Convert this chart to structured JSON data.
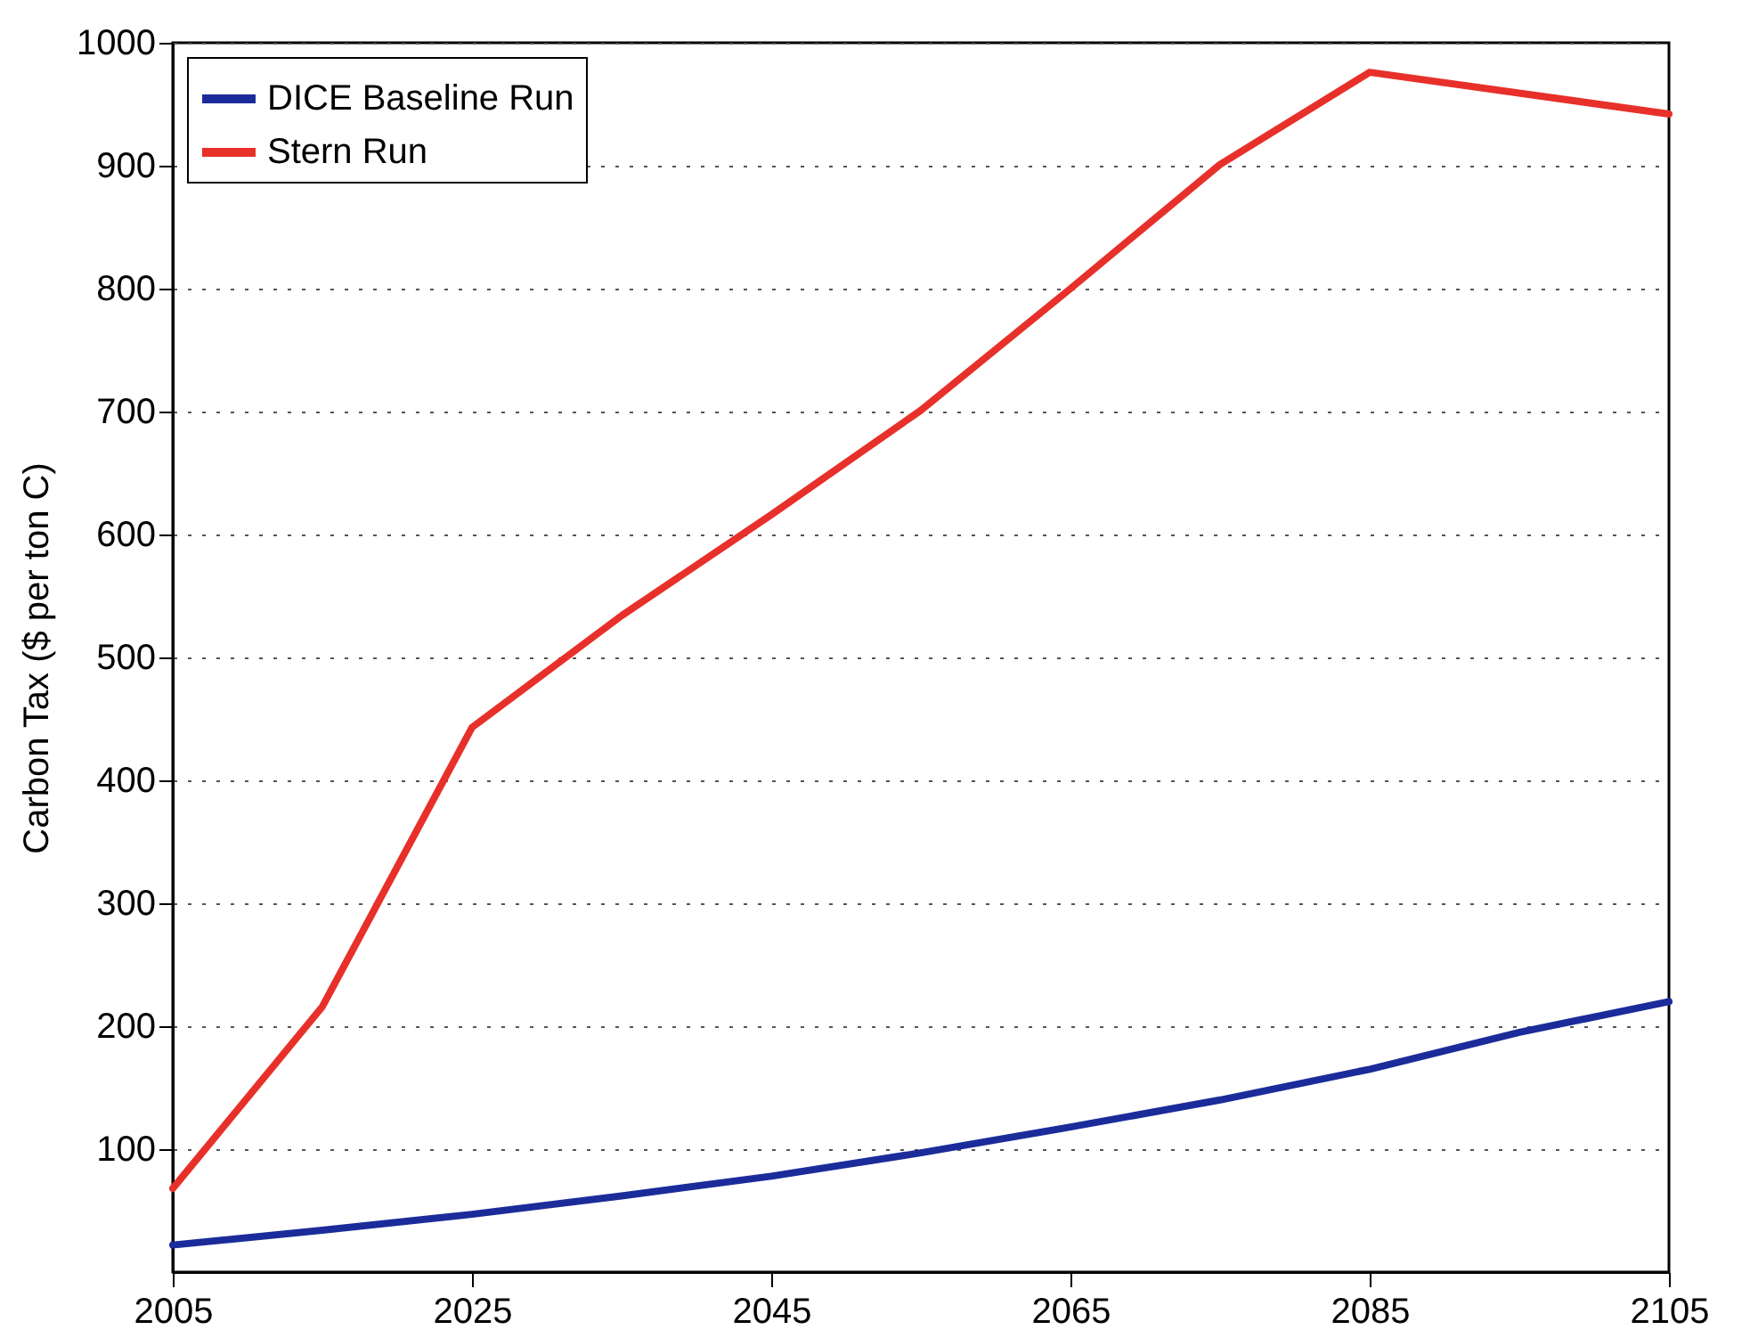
{
  "chart_data": {
    "type": "line",
    "ylabel": "Carbon Tax ($ per ton C)",
    "x": [
      2005,
      2015,
      2025,
      2035,
      2045,
      2055,
      2065,
      2075,
      2085,
      2095,
      2105
    ],
    "series": [
      {
        "name": "DICE Baseline Run",
        "color": "#1b2c9a",
        "values": [
          22,
          34,
          47,
          62,
          78,
          97,
          118,
          140,
          165,
          195,
          220
        ]
      },
      {
        "name": "Stern Run",
        "color": "#e8302a",
        "x": [
          2005,
          2015,
          2025,
          2035,
          2045,
          2055,
          2065,
          2075,
          2085,
          2105
        ],
        "values": [
          68,
          216,
          443,
          534,
          616,
          701,
          800,
          901,
          976,
          942
        ]
      }
    ],
    "xlim": [
      2005,
      2105
    ],
    "xticks": [
      2005,
      2025,
      2045,
      2065,
      2085,
      2105
    ],
    "ylim": [
      0,
      1000
    ],
    "yticks": [
      100,
      200,
      300,
      400,
      500,
      600,
      700,
      800,
      900,
      1000
    ],
    "grid": "y",
    "legend": "top left",
    "line_style": "solid",
    "marker": "none"
  }
}
